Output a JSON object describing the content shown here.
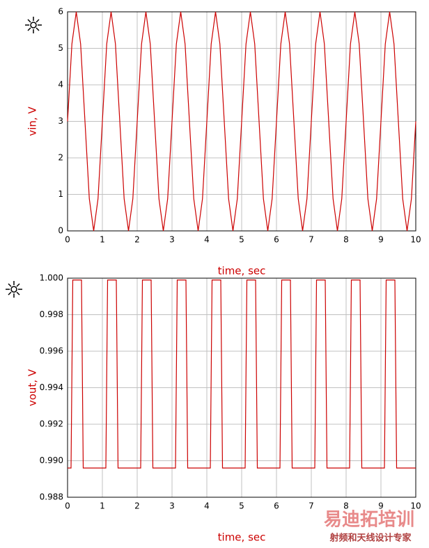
{
  "chart_data": [
    {
      "type": "line",
      "xlabel": "time, sec",
      "ylabel": "vin, V",
      "color": "#cc0000",
      "grid": true,
      "xlim": [
        0,
        10
      ],
      "ylim": [
        0,
        6
      ],
      "xticks": [
        0,
        1,
        2,
        3,
        4,
        5,
        6,
        7,
        8,
        9,
        10
      ],
      "yticks": [
        0,
        1,
        2,
        3,
        4,
        5,
        6
      ],
      "x": [
        0,
        0.125,
        0.25,
        0.375,
        0.5,
        0.625,
        0.75,
        0.875,
        1,
        1.125,
        1.25,
        1.375,
        1.5,
        1.625,
        1.75,
        1.875,
        2,
        2.125,
        2.25,
        2.375,
        2.5,
        2.625,
        2.75,
        2.875,
        3,
        3.125,
        3.25,
        3.375,
        3.5,
        3.625,
        3.75,
        3.875,
        4,
        4.125,
        4.25,
        4.375,
        4.5,
        4.625,
        4.75,
        4.875,
        5,
        5.125,
        5.25,
        5.375,
        5.5,
        5.625,
        5.75,
        5.875,
        6,
        6.125,
        6.25,
        6.375,
        6.5,
        6.625,
        6.75,
        6.875,
        7,
        7.125,
        7.25,
        7.375,
        7.5,
        7.625,
        7.75,
        7.875,
        8,
        8.125,
        8.25,
        8.375,
        8.5,
        8.625,
        8.75,
        8.875,
        9,
        9.125,
        9.25,
        9.375,
        9.5,
        9.625,
        9.75,
        9.875,
        10
      ],
      "values": [
        3,
        5.12,
        6,
        5.12,
        3,
        0.88,
        0,
        0.88,
        3,
        5.12,
        6,
        5.12,
        3,
        0.88,
        0,
        0.88,
        3,
        5.12,
        6,
        5.12,
        3,
        0.88,
        0,
        0.88,
        3,
        5.12,
        6,
        5.12,
        3,
        0.88,
        0,
        0.88,
        3,
        5.12,
        6,
        5.12,
        3,
        0.88,
        0,
        0.88,
        3,
        5.12,
        6,
        5.12,
        3,
        0.88,
        0,
        0.88,
        3,
        5.12,
        6,
        5.12,
        3,
        0.88,
        0,
        0.88,
        3,
        5.12,
        6,
        5.12,
        3,
        0.88,
        0,
        0.88,
        3,
        5.12,
        6,
        5.12,
        3,
        0.88,
        0,
        0.88,
        3,
        5.12,
        6,
        5.12,
        3,
        0.88,
        0,
        0.88,
        3
      ]
    },
    {
      "type": "line",
      "xlabel": "time, sec",
      "ylabel": "vout, V",
      "color": "#cc0000",
      "grid": true,
      "xlim": [
        0,
        10
      ],
      "ylim": [
        0.988,
        1
      ],
      "xticks": [
        0,
        1,
        2,
        3,
        4,
        5,
        6,
        7,
        8,
        9,
        10
      ],
      "yticks": [
        0.988,
        {
          "value": 0.99,
          "label": "0.990"
        },
        0.992,
        0.994,
        0.996,
        0.998,
        {
          "value": 1,
          "label": "1.000"
        }
      ],
      "x": [
        0,
        0.1,
        0.15,
        0.4,
        0.45,
        1.1,
        1.15,
        1.4,
        1.45,
        2.1,
        2.15,
        2.4,
        2.45,
        3.1,
        3.15,
        3.4,
        3.45,
        4.1,
        4.15,
        4.4,
        4.45,
        5.1,
        5.15,
        5.4,
        5.45,
        6.1,
        6.15,
        6.4,
        6.45,
        7.1,
        7.15,
        7.4,
        7.45,
        8.1,
        8.15,
        8.4,
        8.45,
        9.1,
        9.15,
        9.4,
        9.45,
        10
      ],
      "values": [
        0.9896,
        0.9896,
        0.9999,
        0.9999,
        0.9896,
        0.9896,
        0.9999,
        0.9999,
        0.9896,
        0.9896,
        0.9999,
        0.9999,
        0.9896,
        0.9896,
        0.9999,
        0.9999,
        0.9896,
        0.9896,
        0.9999,
        0.9999,
        0.9896,
        0.9896,
        0.9999,
        0.9999,
        0.9896,
        0.9896,
        0.9999,
        0.9999,
        0.9896,
        0.9896,
        0.9999,
        0.9999,
        0.9896,
        0.9896,
        0.9999,
        0.9999,
        0.9896,
        0.9896,
        0.9999,
        0.9999,
        0.9896,
        0.9896
      ]
    }
  ],
  "watermark": {
    "title": "易迪拓培训",
    "subtitle": "射频和天线设计专家"
  }
}
